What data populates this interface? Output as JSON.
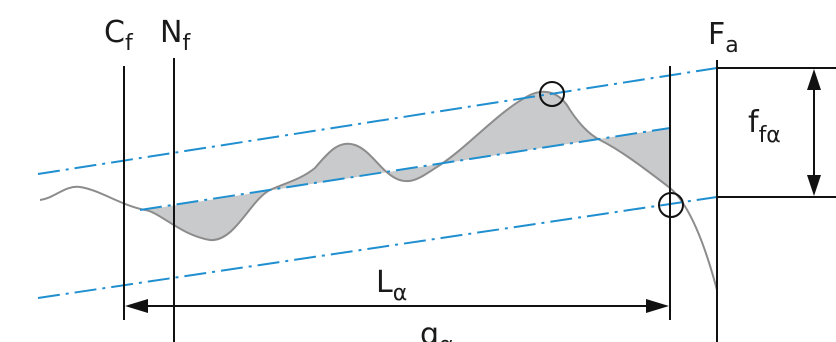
{
  "labels": {
    "cf": {
      "main": "C",
      "sub": "f"
    },
    "nf": {
      "main": "N",
      "sub": "f"
    },
    "fa": {
      "main": "F",
      "sub": "a"
    },
    "ffa": {
      "main": "f",
      "sub": "fα"
    },
    "la": {
      "main": "L",
      "sub": "α"
    },
    "ga": {
      "main": "g",
      "sub": "α"
    }
  },
  "colors": {
    "dash_line": "#1f8fd0",
    "profile": "#8c8c8c",
    "deviation_fill": "#c9cacb",
    "ink": "#111111"
  }
}
